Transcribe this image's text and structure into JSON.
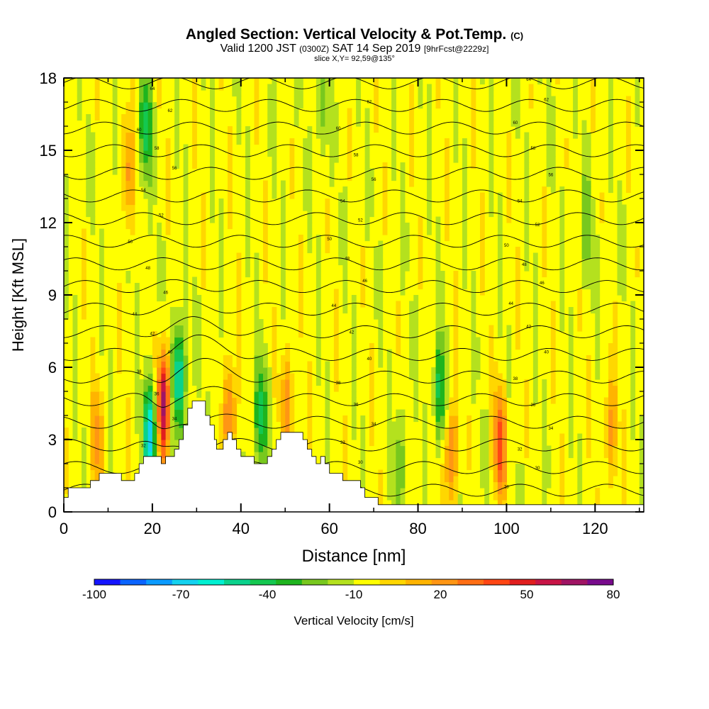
{
  "header": {
    "title_main": "Angled Section: Vertical Velocity & Pot.Temp.",
    "title_units": "(C)",
    "valid_a": "Valid 1200 JST",
    "valid_b": "(0300Z)",
    "valid_c": "SAT 14 Sep 2019",
    "valid_d": "[9hrFcst@2229z]",
    "slice": "slice X,Y= 92,59@135°"
  },
  "chart_data": {
    "type": "heatmap",
    "xlabel": "Distance [nm]",
    "ylabel": "Height [Kft MSL]",
    "xlim": [
      0,
      131
    ],
    "ylim": [
      0,
      18
    ],
    "xticks": [
      0,
      20,
      40,
      60,
      80,
      100,
      120
    ],
    "yticks": [
      0,
      3,
      6,
      9,
      12,
      15,
      18
    ],
    "colorbar": {
      "label": "Vertical Velocity [cm/s]",
      "min": -100,
      "max": 80,
      "step": 10,
      "tick_values": [
        -100,
        -70,
        -40,
        -10,
        20,
        50,
        80
      ],
      "colors": [
        "#1414ff",
        "#0a64ff",
        "#0a9bff",
        "#14d2f0",
        "#00f0d2",
        "#0ad28c",
        "#14c850",
        "#1eb41e",
        "#78c81e",
        "#b4e11e",
        "#ffff00",
        "#ffd700",
        "#ffb400",
        "#ff9614",
        "#ff6e14",
        "#ff4614",
        "#e11e1e",
        "#c81446",
        "#a01464",
        "#780a8c"
      ]
    },
    "terrain_kft": [
      [
        0,
        0.6
      ],
      [
        1,
        1.0
      ],
      [
        5,
        1.0
      ],
      [
        6,
        1.3
      ],
      [
        7,
        1.3
      ],
      [
        8,
        1.6
      ],
      [
        12,
        1.6
      ],
      [
        13,
        1.3
      ],
      [
        15,
        1.3
      ],
      [
        16,
        1.6
      ],
      [
        17,
        2.0
      ],
      [
        18,
        2.3
      ],
      [
        21,
        2.3
      ],
      [
        22,
        2.0
      ],
      [
        23,
        2.3
      ],
      [
        25,
        2.6
      ],
      [
        26,
        3.0
      ],
      [
        27,
        3.6
      ],
      [
        28,
        4.3
      ],
      [
        29,
        4.6
      ],
      [
        31,
        4.6
      ],
      [
        32,
        4.0
      ],
      [
        33,
        3.6
      ],
      [
        34,
        3.0
      ],
      [
        34.5,
        2.6
      ],
      [
        35,
        2.6
      ],
      [
        36,
        3.0
      ],
      [
        37,
        3.3
      ],
      [
        38,
        3.0
      ],
      [
        39,
        2.6
      ],
      [
        40,
        2.3
      ],
      [
        42,
        2.3
      ],
      [
        43,
        2.0
      ],
      [
        45,
        2.0
      ],
      [
        46,
        2.3
      ],
      [
        47,
        2.6
      ],
      [
        48,
        3.0
      ],
      [
        49,
        3.3
      ],
      [
        53,
        3.3
      ],
      [
        54,
        3.0
      ],
      [
        55,
        2.6
      ],
      [
        56,
        2.3
      ],
      [
        57,
        2.0
      ],
      [
        58,
        2.3
      ],
      [
        59,
        2.0
      ],
      [
        60,
        1.6
      ],
      [
        62,
        1.6
      ],
      [
        63,
        1.3
      ],
      [
        66,
        1.3
      ],
      [
        67,
        1.0
      ],
      [
        68,
        0.6
      ],
      [
        70,
        0.6
      ],
      [
        71,
        0.3
      ],
      [
        131,
        0.3
      ]
    ],
    "updraft_cores": [
      {
        "x": 22.5,
        "z": 4.5,
        "w": 80
      },
      {
        "x": 98.5,
        "z": 2.8,
        "w": 50
      },
      {
        "x": 14.5,
        "z": 14.0,
        "w": 30
      },
      {
        "x": 7.5,
        "z": 3.0,
        "w": 30
      },
      {
        "x": 37.5,
        "z": 4.0,
        "w": 40
      },
      {
        "x": 50.5,
        "z": 4.5,
        "w": 30
      },
      {
        "x": 87.5,
        "z": 2.5,
        "w": 40
      },
      {
        "x": 123.5,
        "z": 3.5,
        "w": 30
      }
    ],
    "downdraft_cores": [
      {
        "x": 19.5,
        "z": 3.2,
        "w": -70
      },
      {
        "x": 26.0,
        "z": 5.6,
        "w": -60
      },
      {
        "x": 18.5,
        "z": 16.0,
        "w": -40
      },
      {
        "x": 44.5,
        "z": 4.0,
        "w": -40
      },
      {
        "x": 85.0,
        "z": 5.0,
        "w": -40
      },
      {
        "x": 58.5,
        "z": 17.0,
        "w": -20
      },
      {
        "x": 118.0,
        "z": 12.0,
        "w": -20
      },
      {
        "x": 76.0,
        "z": 2.0,
        "w": -20
      }
    ],
    "theta_contours_C": [
      28,
      30,
      32,
      34,
      36,
      38,
      40,
      42,
      44,
      46,
      48,
      50,
      52,
      54,
      56,
      58,
      60,
      62,
      64
    ]
  }
}
